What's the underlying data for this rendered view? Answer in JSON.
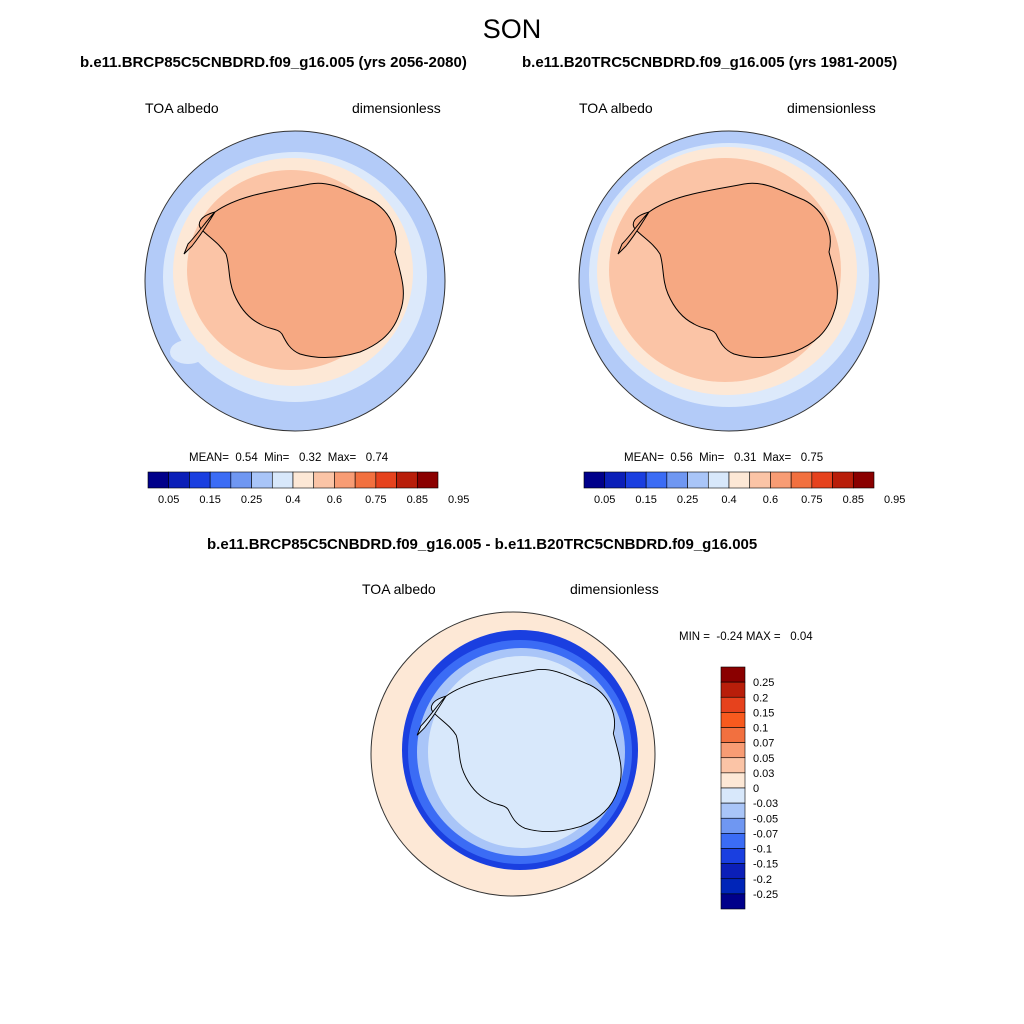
{
  "figure": {
    "title": "SON"
  },
  "panels": [
    {
      "id": "future",
      "run_title": "b.e11.BRCP85C5CNBDRD.f09_g16.005 (yrs 2056-2080)",
      "variable": "TOA albedo",
      "units": "dimensionless",
      "stats": {
        "mean_label": "MEAN=",
        "mean": "0.54",
        "min_label": "Min=",
        "min": "0.32",
        "max_label": "Max=",
        "max": "0.74"
      }
    },
    {
      "id": "historical",
      "run_title": "b.e11.B20TRC5CNBDRD.f09_g16.005 (yrs 1981-2005)",
      "variable": "TOA albedo",
      "units": "dimensionless",
      "stats": {
        "mean_label": "MEAN=",
        "mean": "0.56",
        "min_label": "Min=",
        "min": "0.31",
        "max_label": "Max=",
        "max": "0.75"
      }
    },
    {
      "id": "difference",
      "run_title": "b.e11.BRCP85C5CNBDRD.f09_g16.005 - b.e11.B20TRC5CNBDRD.f09_g16.005",
      "variable": "TOA albedo",
      "units": "dimensionless",
      "stats": {
        "min_label": "MIN =",
        "min": "-0.24",
        "max_label": "MAX =",
        "max": "0.04"
      }
    }
  ],
  "colorbars": {
    "albedo": {
      "tick_labels": [
        "0.05",
        "0.15",
        "0.25",
        "0.4",
        "0.6",
        "0.75",
        "0.85",
        "0.95"
      ],
      "colors": [
        "#00008a",
        "#0b1fb8",
        "#1a3fe0",
        "#3b6cf5",
        "#6f97f2",
        "#a9c5f8",
        "#d8e8fb",
        "#fde8d6",
        "#fbc4a6",
        "#f89c74",
        "#f2703f",
        "#e6421d",
        "#b81e0a",
        "#8a0000"
      ]
    },
    "difference": {
      "tick_labels": [
        "0.25",
        "0.2",
        "0.15",
        "0.1",
        "0.07",
        "0.05",
        "0.03",
        "0",
        "-0.03",
        "-0.05",
        "-0.07",
        "-0.1",
        "-0.15",
        "-0.2",
        "-0.25"
      ],
      "colors": [
        "#8a0000",
        "#b81e0a",
        "#e6421d",
        "#f85a1e",
        "#f2703f",
        "#f89c74",
        "#fbc4a6",
        "#fde8d6",
        "#d8e8fb",
        "#a9c5f8",
        "#6f97f2",
        "#3b6cf5",
        "#1a3fe0",
        "#0b1fb8",
        "#0025b8",
        "#00008a"
      ]
    }
  },
  "map_colors": {
    "ocean_low": "#b3cbf8",
    "ocean_mid": "#dce9fb",
    "sea_ice": "#fde8d6",
    "ice_edge": "#fbc4a6",
    "continent": "#f6a882",
    "diff_base": "#fde8d6",
    "diff_zero": "#d8e8fb",
    "diff_neg_light": "#a9c5f8",
    "diff_neg_mid": "#3b6cf5",
    "diff_neg_dark": "#1a3fe0"
  }
}
